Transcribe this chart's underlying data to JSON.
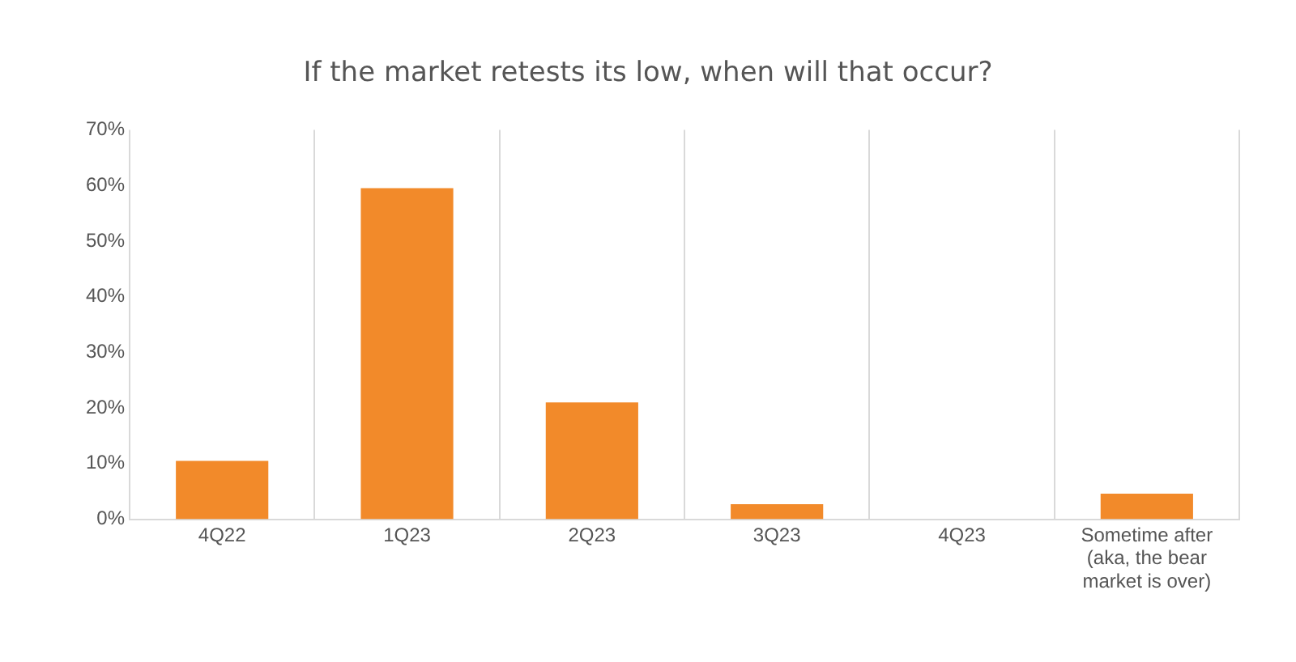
{
  "chart_data": {
    "type": "bar",
    "title": "If the market retests its low, when will that occur?",
    "categories": [
      "4Q22",
      "1Q23",
      "2Q23",
      "3Q23",
      "4Q23",
      "Sometime after (aka, the bear market is over)"
    ],
    "values": [
      10.5,
      59.5,
      21,
      2.7,
      0,
      4.6
    ],
    "color": "#f28a2a",
    "ylim": [
      0,
      70
    ],
    "yticks": [
      {
        "value": 0,
        "label": "0%"
      },
      {
        "value": 10,
        "label": "10%"
      },
      {
        "value": 20,
        "label": "20%"
      },
      {
        "value": 30,
        "label": "30%"
      },
      {
        "value": 40,
        "label": "40%"
      },
      {
        "value": 50,
        "label": "50%"
      },
      {
        "value": 60,
        "label": "60%"
      },
      {
        "value": 70,
        "label": "70%"
      }
    ],
    "grid": "x",
    "legend": false
  }
}
